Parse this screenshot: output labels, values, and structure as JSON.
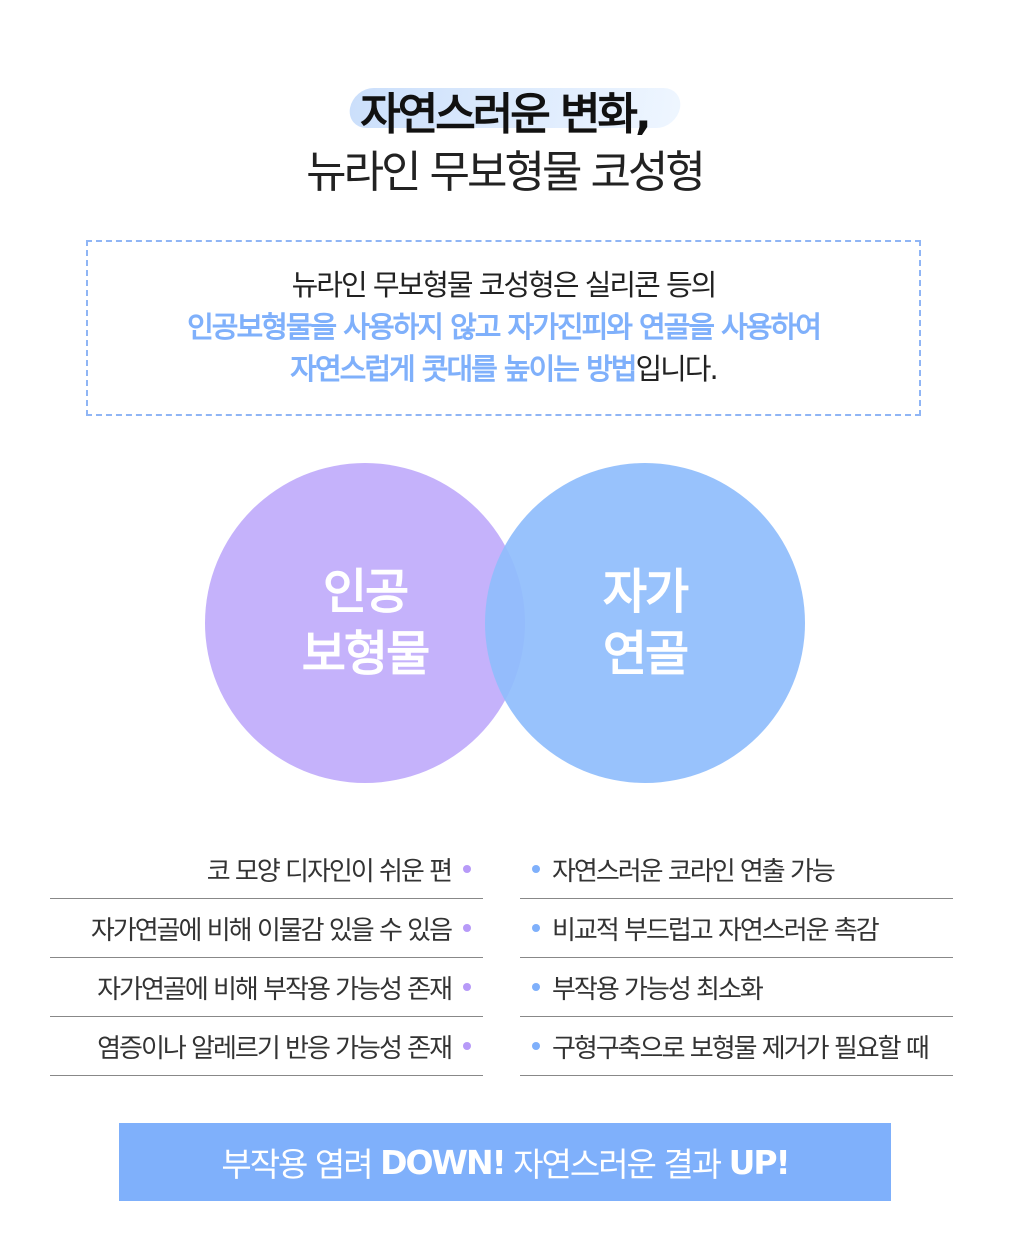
{
  "heading": {
    "line1": "자연스러운 변화,",
    "line2": "뉴라인 무보형물 코성형"
  },
  "intro": {
    "line1": "뉴라인 무보형물 코성형은 실리콘 등의",
    "line2": "인공보형물을 사용하지 않고 자가진피와 연골을 사용하여",
    "line3_highlight": "자연스럽게 콧대를 높이는 방법",
    "line3_rest": "입니다."
  },
  "venn": {
    "left": [
      "인공",
      "보형물"
    ],
    "right": [
      "자가",
      "연골"
    ],
    "left_color": "#c5b2fb",
    "right_color": "#8fbdfc"
  },
  "left_list": [
    "코 모양 디자인이 쉬운 편",
    "자가연골에 비해 이물감 있을 수 있음",
    "자가연골에 비해 부작용 가능성 존재",
    "염증이나 알레르기 반응 가능성 존재"
  ],
  "right_list": [
    "자연스러운 코라인 연출 가능",
    "비교적 부드럽고 자연스러운 촉감",
    "부작용 가능성 최소화",
    "구형구축으로 보형물 제거가 필요할 때"
  ],
  "banner": {
    "p1": "부작용 염려 ",
    "b1": "DOWN!",
    "p2": " 자연스러운 결과 ",
    "b2": "UP!",
    "color": "#7fb0fb"
  }
}
